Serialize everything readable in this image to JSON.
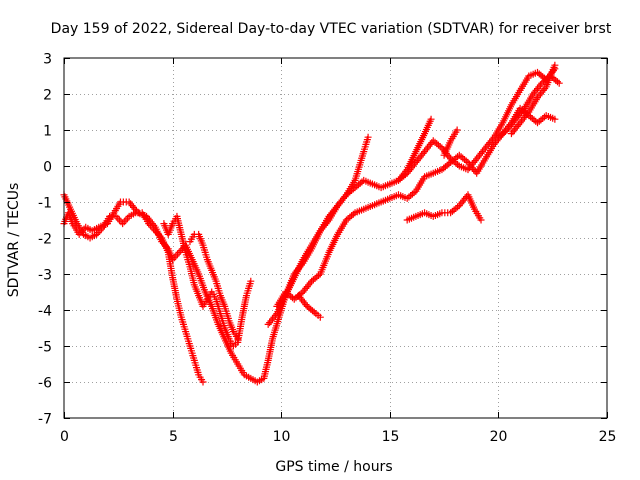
{
  "chart_data": {
    "type": "scatter",
    "title": "Day 159 of 2022, Sidereal Day-to-day VTEC variation (SDTVAR) for receiver brst",
    "xlabel": "GPS time / hours",
    "ylabel": "SDTVAR / TECUs",
    "xlim": [
      0,
      25
    ],
    "ylim": [
      -7,
      3
    ],
    "xticks": [
      "0",
      "5",
      "10",
      "15",
      "20",
      "25"
    ],
    "yticks": [
      "3",
      "2",
      "1",
      "0",
      "-1",
      "-2",
      "-3",
      "-4",
      "-5",
      "-6",
      "-7"
    ],
    "xtick_values": [
      0,
      5,
      10,
      15,
      20,
      25
    ],
    "ytick_values": [
      3,
      2,
      1,
      0,
      -1,
      -2,
      -3,
      -4,
      -5,
      -6,
      -7
    ],
    "grid": true,
    "grid_style": "dotted",
    "marker": "plus",
    "color": "#ff0000",
    "series": [
      {
        "points": [
          [
            0.0,
            -1.6
          ],
          [
            0.2,
            -1.3
          ],
          [
            0.4,
            -1.6
          ],
          [
            0.7,
            -1.9
          ],
          [
            1.0,
            -1.7
          ],
          [
            1.3,
            -1.8
          ],
          [
            1.6,
            -1.7
          ],
          [
            2.0,
            -1.6
          ],
          [
            2.3,
            -1.3
          ],
          [
            2.6,
            -1.0
          ],
          [
            3.0,
            -1.0
          ],
          [
            3.4,
            -1.3
          ],
          [
            3.8,
            -1.4
          ],
          [
            4.2,
            -1.7
          ],
          [
            4.5,
            -2.1
          ],
          [
            4.8,
            -2.3
          ],
          [
            5.0,
            -2.6
          ],
          [
            5.3,
            -2.4
          ],
          [
            5.6,
            -2.2
          ],
          [
            5.9,
            -2.6
          ],
          [
            6.2,
            -3.0
          ],
          [
            6.5,
            -3.5
          ],
          [
            6.8,
            -3.9
          ],
          [
            7.1,
            -4.4
          ],
          [
            7.4,
            -4.8
          ],
          [
            7.7,
            -5.2
          ],
          [
            8.0,
            -5.5
          ],
          [
            8.3,
            -5.8
          ],
          [
            8.6,
            -5.9
          ],
          [
            8.9,
            -6.0
          ],
          [
            9.2,
            -5.9
          ],
          [
            9.4,
            -5.4
          ],
          [
            9.6,
            -4.8
          ],
          [
            9.9,
            -4.2
          ],
          [
            10.2,
            -3.6
          ],
          [
            10.6,
            -3.1
          ],
          [
            11.0,
            -2.6
          ],
          [
            11.4,
            -2.2
          ],
          [
            11.8,
            -1.8
          ],
          [
            12.2,
            -1.5
          ],
          [
            12.6,
            -1.1
          ],
          [
            13.0,
            -0.8
          ],
          [
            13.4,
            -0.6
          ],
          [
            13.8,
            -0.4
          ],
          [
            14.2,
            -0.5
          ],
          [
            14.6,
            -0.6
          ],
          [
            15.0,
            -0.5
          ],
          [
            15.4,
            -0.4
          ],
          [
            15.8,
            -0.2
          ],
          [
            16.2,
            0.1
          ],
          [
            16.6,
            0.4
          ],
          [
            17.0,
            0.7
          ],
          [
            17.4,
            0.5
          ],
          [
            17.8,
            0.2
          ],
          [
            18.2,
            0.0
          ],
          [
            18.6,
            -0.1
          ],
          [
            19.0,
            0.2
          ],
          [
            19.4,
            0.5
          ],
          [
            19.8,
            0.8
          ],
          [
            20.2,
            1.2
          ],
          [
            20.6,
            1.7
          ],
          [
            21.0,
            2.1
          ],
          [
            21.4,
            2.5
          ],
          [
            21.8,
            2.6
          ],
          [
            22.2,
            2.4
          ],
          [
            22.6,
            2.7
          ]
        ]
      },
      {
        "points": [
          [
            0.0,
            -0.8
          ],
          [
            0.3,
            -1.2
          ],
          [
            0.6,
            -1.6
          ],
          [
            0.9,
            -1.9
          ],
          [
            1.2,
            -2.0
          ],
          [
            1.5,
            -1.9
          ],
          [
            1.8,
            -1.7
          ],
          [
            2.1,
            -1.4
          ],
          [
            2.4,
            -1.4
          ],
          [
            2.7,
            -1.6
          ],
          [
            3.0,
            -1.4
          ],
          [
            3.3,
            -1.3
          ],
          [
            3.6,
            -1.3
          ],
          [
            3.9,
            -1.6
          ],
          [
            4.2,
            -1.8
          ],
          [
            4.5,
            -2.0
          ],
          [
            4.8,
            -2.4
          ],
          [
            5.0,
            -3.1
          ],
          [
            5.2,
            -3.7
          ],
          [
            5.4,
            -4.2
          ],
          [
            5.6,
            -4.6
          ],
          [
            5.8,
            -5.0
          ],
          [
            6.0,
            -5.4
          ],
          [
            6.2,
            -5.8
          ],
          [
            6.4,
            -6.0
          ]
        ]
      },
      {
        "points": [
          [
            4.6,
            -1.6
          ],
          [
            4.8,
            -1.9
          ],
          [
            5.0,
            -1.6
          ],
          [
            5.2,
            -1.4
          ],
          [
            5.4,
            -1.9
          ],
          [
            5.6,
            -2.4
          ],
          [
            5.8,
            -2.8
          ],
          [
            6.0,
            -3.3
          ],
          [
            6.2,
            -3.6
          ],
          [
            6.4,
            -3.9
          ],
          [
            6.6,
            -3.7
          ],
          [
            6.8,
            -3.5
          ],
          [
            7.0,
            -3.7
          ],
          [
            7.2,
            -4.1
          ],
          [
            7.4,
            -4.5
          ],
          [
            7.6,
            -4.8
          ],
          [
            7.8,
            -5.0
          ],
          [
            8.0,
            -4.9
          ],
          [
            8.2,
            -4.2
          ],
          [
            8.4,
            -3.6
          ],
          [
            8.6,
            -3.2
          ]
        ]
      },
      {
        "points": [
          [
            5.8,
            -2.1
          ],
          [
            6.0,
            -1.9
          ],
          [
            6.2,
            -1.9
          ],
          [
            6.4,
            -2.2
          ],
          [
            6.6,
            -2.6
          ],
          [
            6.8,
            -2.9
          ],
          [
            7.0,
            -3.2
          ],
          [
            7.2,
            -3.6
          ],
          [
            7.4,
            -3.9
          ],
          [
            7.6,
            -4.3
          ],
          [
            7.8,
            -4.6
          ],
          [
            8.0,
            -4.8
          ]
        ]
      },
      {
        "points": [
          [
            9.4,
            -4.4
          ],
          [
            9.8,
            -4.1
          ],
          [
            10.2,
            -3.6
          ],
          [
            10.6,
            -3.0
          ],
          [
            11.0,
            -2.7
          ],
          [
            11.4,
            -2.3
          ],
          [
            11.8,
            -1.8
          ],
          [
            12.2,
            -1.4
          ],
          [
            12.6,
            -1.1
          ],
          [
            13.0,
            -0.8
          ],
          [
            13.4,
            -0.4
          ],
          [
            13.8,
            0.4
          ],
          [
            14.0,
            0.8
          ]
        ]
      },
      {
        "points": [
          [
            9.8,
            -3.9
          ],
          [
            10.2,
            -3.5
          ],
          [
            10.6,
            -3.7
          ],
          [
            11.0,
            -3.5
          ],
          [
            11.4,
            -3.2
          ],
          [
            11.8,
            -3.0
          ],
          [
            12.2,
            -2.4
          ],
          [
            12.6,
            -1.9
          ],
          [
            13.0,
            -1.5
          ],
          [
            13.4,
            -1.3
          ],
          [
            13.8,
            -1.2
          ],
          [
            14.2,
            -1.1
          ],
          [
            14.6,
            -1.0
          ],
          [
            15.0,
            -0.9
          ],
          [
            15.4,
            -0.8
          ],
          [
            15.8,
            -0.9
          ],
          [
            16.2,
            -0.7
          ],
          [
            16.6,
            -0.3
          ],
          [
            17.0,
            -0.2
          ],
          [
            17.4,
            -0.1
          ],
          [
            17.8,
            0.1
          ],
          [
            18.2,
            0.3
          ],
          [
            18.6,
            0.1
          ],
          [
            19.0,
            -0.2
          ],
          [
            19.4,
            0.2
          ],
          [
            19.8,
            0.6
          ],
          [
            20.2,
            0.9
          ],
          [
            20.6,
            1.2
          ],
          [
            21.0,
            1.6
          ],
          [
            21.4,
            1.4
          ],
          [
            21.8,
            1.2
          ],
          [
            22.2,
            1.4
          ],
          [
            22.6,
            1.3
          ]
        ]
      },
      {
        "points": [
          [
            10.8,
            -3.6
          ],
          [
            11.2,
            -3.9
          ],
          [
            11.6,
            -4.1
          ],
          [
            11.8,
            -4.2
          ]
        ]
      },
      {
        "points": [
          [
            15.4,
            -0.4
          ],
          [
            15.8,
            -0.1
          ],
          [
            16.2,
            0.4
          ],
          [
            16.6,
            0.9
          ],
          [
            16.9,
            1.3
          ]
        ]
      },
      {
        "points": [
          [
            15.8,
            -1.5
          ],
          [
            16.2,
            -1.4
          ],
          [
            16.6,
            -1.3
          ],
          [
            17.0,
            -1.4
          ],
          [
            17.4,
            -1.3
          ],
          [
            17.8,
            -1.3
          ],
          [
            18.2,
            -1.1
          ],
          [
            18.6,
            -0.8
          ],
          [
            18.9,
            -1.2
          ],
          [
            19.2,
            -1.5
          ]
        ]
      },
      {
        "points": [
          [
            20.0,
            0.8
          ],
          [
            20.4,
            1.0
          ],
          [
            20.8,
            1.3
          ],
          [
            21.2,
            1.6
          ],
          [
            21.6,
            2.0
          ],
          [
            22.0,
            2.3
          ],
          [
            22.4,
            2.5
          ],
          [
            22.8,
            2.3
          ]
        ]
      },
      {
        "points": [
          [
            20.6,
            0.9
          ],
          [
            21.0,
            1.2
          ],
          [
            21.4,
            1.5
          ],
          [
            21.8,
            1.9
          ],
          [
            22.2,
            2.2
          ],
          [
            22.6,
            2.8
          ]
        ]
      },
      {
        "points": [
          [
            17.5,
            0.3
          ],
          [
            17.8,
            0.7
          ],
          [
            18.1,
            1.0
          ]
        ]
      }
    ]
  }
}
